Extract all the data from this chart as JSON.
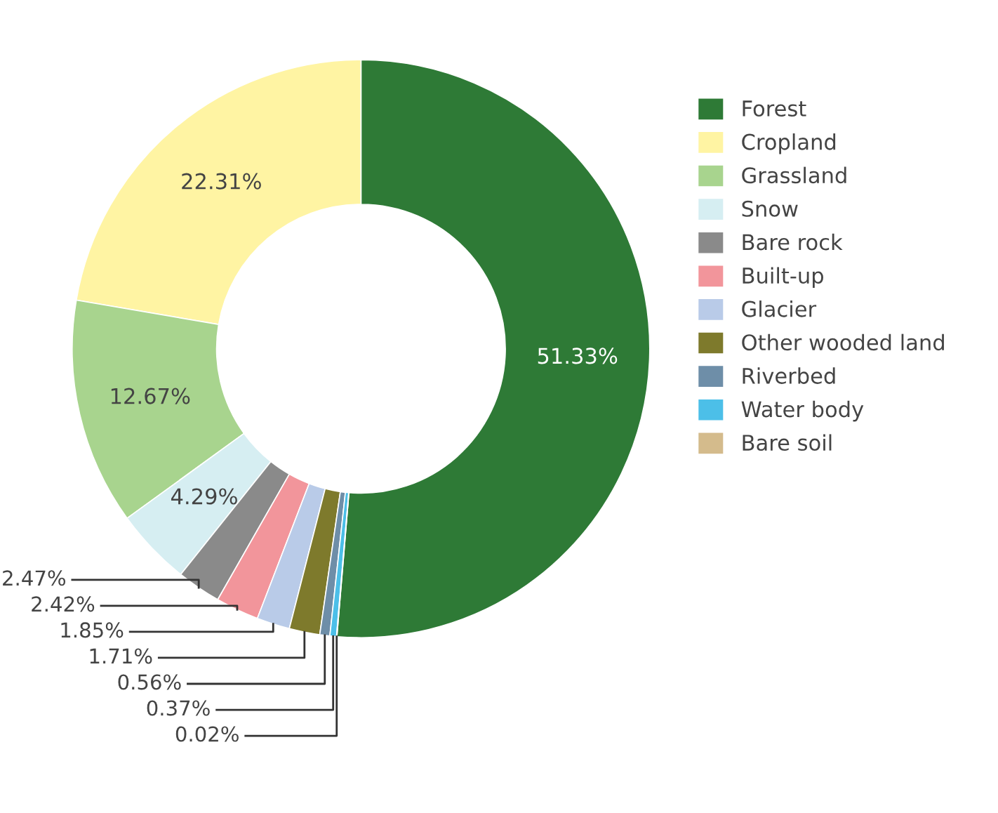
{
  "chart_data": {
    "type": "donut",
    "categories": [
      "Forest",
      "Cropland",
      "Grassland",
      "Snow",
      "Bare rock",
      "Built-up",
      "Glacier",
      "Other wooded land",
      "Riverbed",
      "Water body",
      "Bare soil"
    ],
    "values": [
      51.33,
      22.31,
      12.67,
      4.29,
      2.47,
      2.42,
      1.85,
      1.71,
      0.56,
      0.37,
      0.02
    ],
    "colors": [
      "#2e7a36",
      "#fff4a3",
      "#a8d48e",
      "#d6eef2",
      "#8a8a8a",
      "#f2959b",
      "#b9cbe8",
      "#7e7a2c",
      "#6e8ea8",
      "#4cbfe8",
      "#d4bb8c"
    ],
    "value_labels": [
      "51.33%",
      "22.31%",
      "12.67%",
      "4.29%",
      "2.47%",
      "2.42%",
      "1.85%",
      "1.71%",
      "0.56%",
      "0.37%",
      "0.02%"
    ],
    "legend": "right"
  }
}
